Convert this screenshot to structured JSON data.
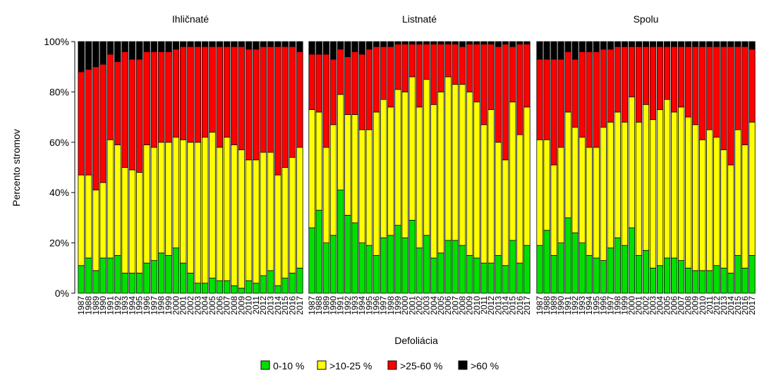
{
  "chart_data": [
    {
      "type": "bar",
      "stacked": true,
      "title": "Ihličnaté",
      "ylabel": "Percento stromov",
      "xlabel": "Defoliácia",
      "categories": [
        "1987",
        "1988",
        "1989",
        "1990",
        "1991",
        "1992",
        "1993",
        "1994",
        "1995",
        "1996",
        "1997",
        "1998",
        "1999",
        "2000",
        "2001",
        "2002",
        "2003",
        "2004",
        "2005",
        "2006",
        "2007",
        "2008",
        "2009",
        "2010",
        "2011",
        "2012",
        "2013",
        "2014",
        "2015",
        "2016",
        "2017"
      ],
      "ylim": [
        0,
        100
      ],
      "yticks": [
        {
          "value": 0,
          "label": "0%"
        },
        {
          "value": 20,
          "label": "20%"
        },
        {
          "value": 40,
          "label": "40%"
        },
        {
          "value": 60,
          "label": "60%"
        },
        {
          "value": 80,
          "label": "80%"
        },
        {
          "value": 100,
          "label": "100%"
        }
      ],
      "series": [
        {
          "name": "0-10 %",
          "color": "#00e000",
          "values": [
            11,
            14,
            9,
            14,
            14,
            15,
            8,
            8,
            8,
            12,
            13,
            16,
            15,
            18,
            12,
            8,
            4,
            4,
            6,
            5,
            5,
            3,
            2,
            5,
            4,
            7,
            9,
            3,
            6,
            8,
            10
          ]
        },
        {
          "name": ">10-25 %",
          "color": "#ffff00",
          "values": [
            36,
            33,
            32,
            30,
            47,
            44,
            42,
            41,
            40,
            47,
            45,
            44,
            45,
            44,
            49,
            52,
            56,
            58,
            58,
            53,
            57,
            56,
            55,
            48,
            49,
            49,
            47,
            44,
            44,
            46,
            48
          ]
        },
        {
          "name": ">25-60 %",
          "color": "#ff0000",
          "values": [
            41,
            42,
            49,
            47,
            34,
            33,
            46,
            44,
            45,
            37,
            38,
            36,
            36,
            35,
            37,
            38,
            38,
            36,
            34,
            40,
            36,
            39,
            41,
            44,
            44,
            42,
            42,
            51,
            48,
            44,
            38
          ]
        },
        {
          "name": ">60 %",
          "color": "#000000",
          "values": [
            12,
            11,
            10,
            9,
            5,
            8,
            4,
            7,
            7,
            4,
            4,
            4,
            4,
            3,
            2,
            2,
            2,
            2,
            2,
            2,
            2,
            2,
            2,
            3,
            3,
            2,
            2,
            2,
            2,
            2,
            4
          ]
        }
      ]
    },
    {
      "type": "bar",
      "stacked": true,
      "title": "Listnaté",
      "categories": [
        "1987",
        "1988",
        "1989",
        "1990",
        "1991",
        "1992",
        "1993",
        "1994",
        "1995",
        "1996",
        "1997",
        "1998",
        "1999",
        "2000",
        "2001",
        "2002",
        "2003",
        "2004",
        "2005",
        "2006",
        "2007",
        "2008",
        "2009",
        "2010",
        "2011",
        "2012",
        "2013",
        "2014",
        "2015",
        "2016",
        "2017"
      ],
      "ylim": [
        0,
        100
      ],
      "series": [
        {
          "name": "0-10 %",
          "color": "#00e000",
          "values": [
            26,
            33,
            20,
            23,
            41,
            31,
            28,
            20,
            19,
            15,
            22,
            23,
            27,
            22,
            29,
            18,
            23,
            14,
            16,
            21,
            21,
            19,
            15,
            14,
            12,
            12,
            15,
            11,
            21,
            12,
            19
          ]
        },
        {
          "name": ">10-25 %",
          "color": "#ffff00",
          "values": [
            47,
            39,
            38,
            44,
            38,
            40,
            43,
            45,
            46,
            57,
            55,
            51,
            54,
            58,
            57,
            56,
            62,
            61,
            64,
            65,
            62,
            64,
            65,
            62,
            55,
            61,
            45,
            42,
            55,
            51,
            55
          ]
        },
        {
          "name": ">25-60 %",
          "color": "#ff0000",
          "values": [
            22,
            23,
            37,
            26,
            18,
            23,
            25,
            30,
            32,
            26,
            21,
            24,
            18,
            19,
            13,
            25,
            14,
            24,
            19,
            13,
            16,
            15,
            19,
            23,
            32,
            26,
            38,
            46,
            22,
            36,
            25
          ]
        },
        {
          "name": ">60 %",
          "color": "#000000",
          "values": [
            5,
            5,
            5,
            7,
            3,
            6,
            4,
            5,
            3,
            2,
            2,
            2,
            1,
            1,
            1,
            1,
            1,
            1,
            1,
            1,
            1,
            2,
            1,
            1,
            1,
            1,
            2,
            1,
            2,
            1,
            1
          ]
        }
      ]
    },
    {
      "type": "bar",
      "stacked": true,
      "title": "Spolu",
      "categories": [
        "1987",
        "1988",
        "1989",
        "1990",
        "1991",
        "1992",
        "1993",
        "1994",
        "1995",
        "1996",
        "1997",
        "1998",
        "1999",
        "2000",
        "2001",
        "2002",
        "2003",
        "2004",
        "2005",
        "2006",
        "2007",
        "2008",
        "2009",
        "2010",
        "2011",
        "2012",
        "2013",
        "2014",
        "2015",
        "2016",
        "2017"
      ],
      "ylim": [
        0,
        100
      ],
      "series": [
        {
          "name": "0-10 %",
          "color": "#00e000",
          "values": [
            19,
            25,
            15,
            20,
            30,
            24,
            20,
            15,
            14,
            13,
            18,
            22,
            19,
            26,
            15,
            17,
            10,
            11,
            14,
            14,
            13,
            10,
            9,
            9,
            9,
            11,
            10,
            8,
            15,
            10,
            15
          ]
        },
        {
          "name": ">10-25 %",
          "color": "#ffff00",
          "values": [
            42,
            36,
            36,
            38,
            42,
            42,
            42,
            43,
            44,
            53,
            50,
            50,
            49,
            52,
            53,
            58,
            59,
            62,
            63,
            58,
            61,
            60,
            58,
            52,
            56,
            51,
            47,
            43,
            50,
            49,
            53
          ]
        },
        {
          "name": ">25-60 %",
          "color": "#ff0000",
          "values": [
            32,
            32,
            42,
            35,
            24,
            27,
            34,
            38,
            38,
            31,
            29,
            26,
            30,
            20,
            30,
            23,
            29,
            25,
            21,
            26,
            24,
            28,
            31,
            37,
            33,
            36,
            41,
            47,
            33,
            39,
            29
          ]
        },
        {
          "name": ">60 %",
          "color": "#000000",
          "values": [
            7,
            7,
            7,
            7,
            4,
            7,
            4,
            4,
            4,
            3,
            3,
            2,
            2,
            2,
            2,
            2,
            2,
            2,
            2,
            2,
            2,
            2,
            2,
            2,
            2,
            2,
            2,
            2,
            2,
            2,
            3
          ]
        }
      ]
    }
  ]
}
